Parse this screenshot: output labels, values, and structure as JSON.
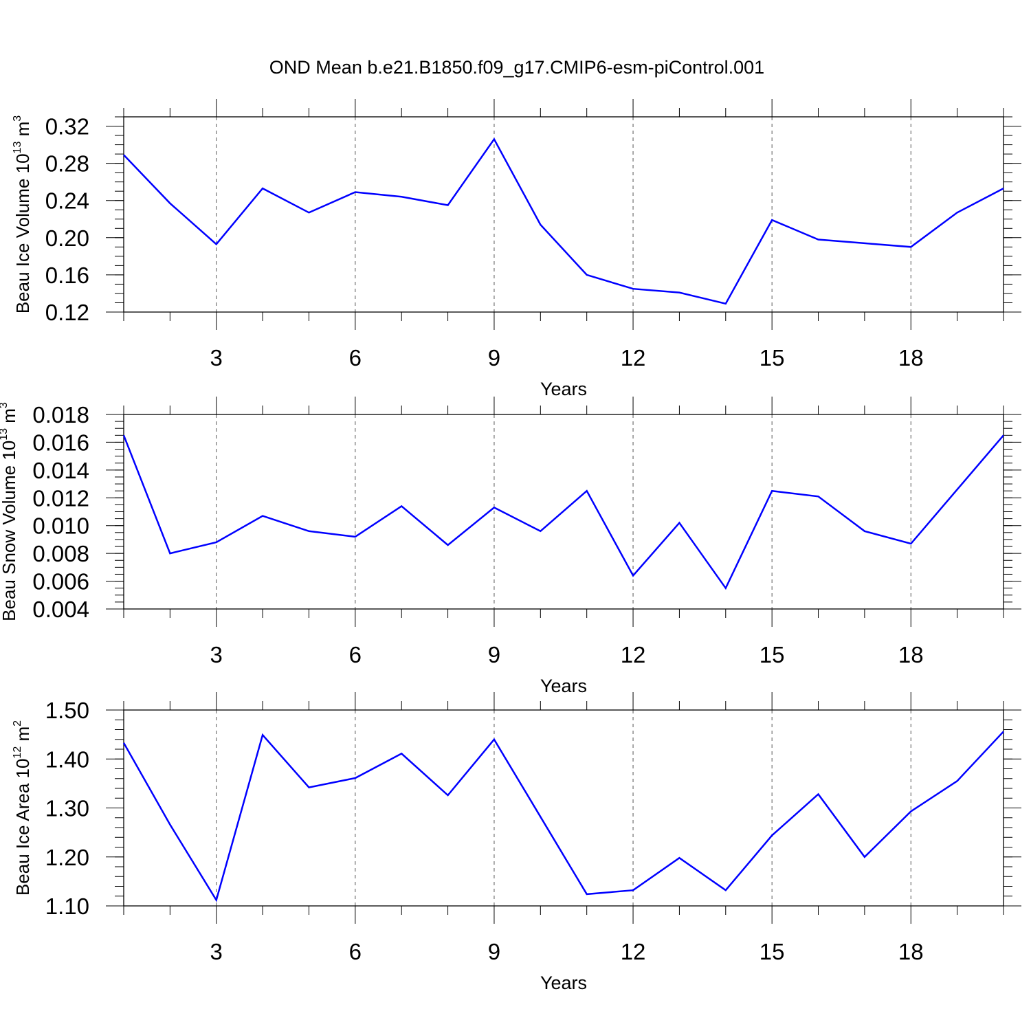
{
  "chart_data": [
    {
      "type": "line",
      "title": "OND Mean b.e21.B1850.f09_g17.CMIP6-esm-piControl.001",
      "ylabel": {
        "base": "Beau Ice Volume 10",
        "exp": "13",
        "unit": " m",
        "unit_exp": "3"
      },
      "xlabel": "Years",
      "x": [
        1,
        2,
        3,
        4,
        5,
        6,
        7,
        8,
        9,
        10,
        11,
        12,
        13,
        14,
        15,
        16,
        17,
        18,
        19,
        20
      ],
      "values": [
        0.289,
        0.237,
        0.193,
        0.253,
        0.227,
        0.249,
        0.244,
        0.235,
        0.306,
        0.214,
        0.16,
        0.145,
        0.141,
        0.129,
        0.219,
        0.198,
        0.194,
        0.19,
        0.227,
        0.253
      ],
      "xlim": [
        1,
        20
      ],
      "ylim": [
        0.12,
        0.33
      ],
      "yticks": [
        0.12,
        0.16,
        0.2,
        0.24,
        0.28,
        0.32
      ],
      "ytick_labels": [
        "0.12",
        "0.16",
        "0.20",
        "0.24",
        "0.28",
        "0.32"
      ],
      "yminor": 0.01,
      "xticks": [
        3,
        6,
        9,
        12,
        15,
        18
      ],
      "xtick_labels": [
        "3",
        "6",
        "9",
        "12",
        "15",
        "18"
      ],
      "line_color": "#0000ff"
    },
    {
      "type": "line",
      "ylabel": {
        "base": "Beau Snow Volume 10",
        "exp": "13",
        "unit": " m",
        "unit_exp": "3"
      },
      "xlabel": "Years",
      "x": [
        1,
        2,
        3,
        4,
        5,
        6,
        7,
        8,
        9,
        10,
        11,
        12,
        13,
        14,
        15,
        16,
        17,
        18,
        19,
        20
      ],
      "values": [
        0.0165,
        0.008,
        0.0088,
        0.0107,
        0.0096,
        0.0092,
        0.0114,
        0.0086,
        0.0113,
        0.0096,
        0.0125,
        0.0064,
        0.0102,
        0.0055,
        0.0125,
        0.0121,
        0.0096,
        0.0087,
        0.0126,
        0.0165
      ],
      "xlim": [
        1,
        20
      ],
      "ylim": [
        0.004,
        0.018
      ],
      "yticks": [
        0.004,
        0.006,
        0.008,
        0.01,
        0.012,
        0.014,
        0.016,
        0.018
      ],
      "ytick_labels": [
        "0.004",
        "0.006",
        "0.008",
        "0.010",
        "0.012",
        "0.014",
        "0.016",
        "0.018"
      ],
      "yminor": 0.0005,
      "xticks": [
        3,
        6,
        9,
        12,
        15,
        18
      ],
      "xtick_labels": [
        "3",
        "6",
        "9",
        "12",
        "15",
        "18"
      ],
      "line_color": "#0000ff"
    },
    {
      "type": "line",
      "ylabel": {
        "base": "Beau Ice Area 10",
        "exp": "12",
        "unit": " m",
        "unit_exp": "2"
      },
      "xlabel": "Years",
      "x": [
        1,
        2,
        3,
        4,
        5,
        6,
        7,
        8,
        9,
        10,
        11,
        12,
        13,
        14,
        15,
        16,
        17,
        18,
        19,
        20
      ],
      "values": [
        1.433,
        1.266,
        1.112,
        1.449,
        1.342,
        1.361,
        1.411,
        1.326,
        1.44,
        1.282,
        1.124,
        1.132,
        1.198,
        1.132,
        1.244,
        1.328,
        1.2,
        1.293,
        1.355,
        1.456
      ],
      "xlim": [
        1,
        20
      ],
      "ylim": [
        1.1,
        1.5
      ],
      "yticks": [
        1.1,
        1.2,
        1.3,
        1.4,
        1.5
      ],
      "ytick_labels": [
        "1.10",
        "1.20",
        "1.30",
        "1.40",
        "1.50"
      ],
      "yminor": 0.02,
      "xticks": [
        3,
        6,
        9,
        12,
        15,
        18
      ],
      "xtick_labels": [
        "3",
        "6",
        "9",
        "12",
        "15",
        "18"
      ],
      "line_color": "#0000ff"
    }
  ]
}
